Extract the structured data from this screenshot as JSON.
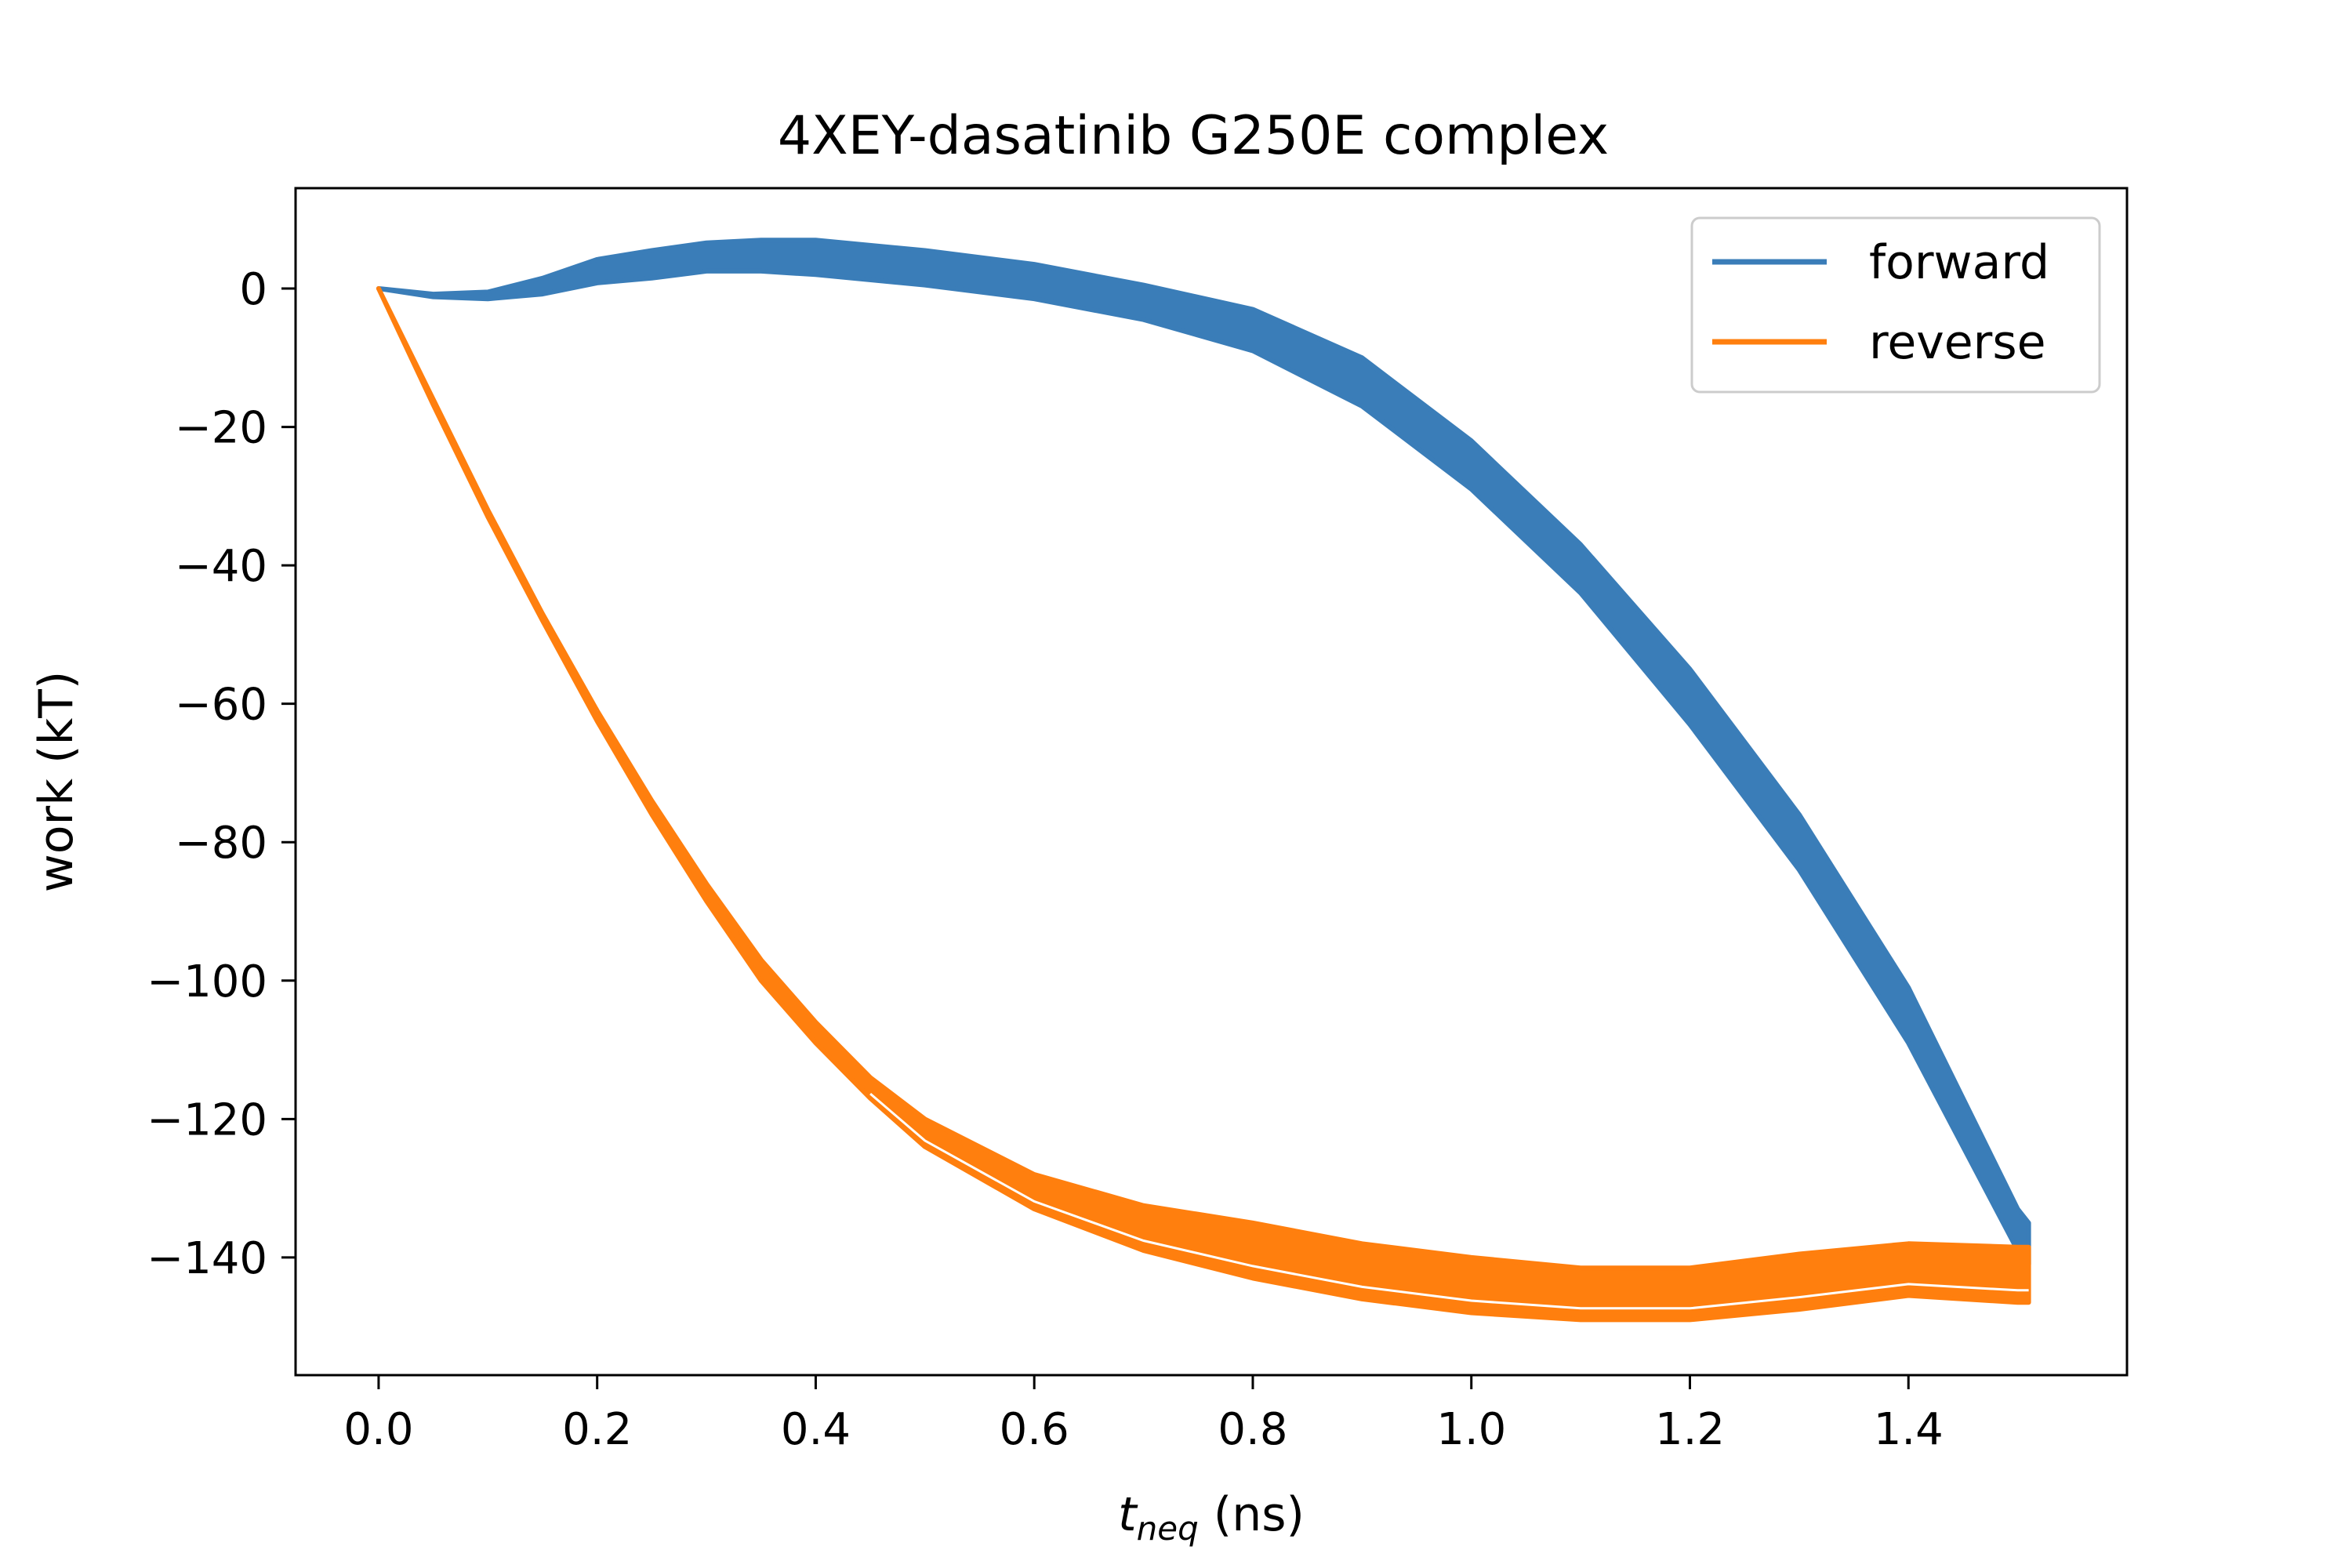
{
  "chart_data": {
    "type": "line",
    "title": "4XEY-dasatinib G250E complex",
    "xlabel": {
      "main": "t",
      "sub": "neq",
      "unit": " (ns)"
    },
    "ylabel": "work (kT)",
    "xlim": [
      -0.076,
      1.6
    ],
    "ylim": [
      -157,
      14.5
    ],
    "x_ticks": [
      {
        "value": 0.0,
        "label": "0.0"
      },
      {
        "value": 0.2,
        "label": "0.2"
      },
      {
        "value": 0.4,
        "label": "0.4"
      },
      {
        "value": 0.6,
        "label": "0.6"
      },
      {
        "value": 0.8,
        "label": "0.8"
      },
      {
        "value": 1.0,
        "label": "1.0"
      },
      {
        "value": 1.2,
        "label": "1.2"
      },
      {
        "value": 1.4,
        "label": "1.4"
      }
    ],
    "y_ticks": [
      {
        "value": 0,
        "label": "0"
      },
      {
        "value": -20,
        "label": "−20"
      },
      {
        "value": -40,
        "label": "−40"
      },
      {
        "value": -60,
        "label": "−60"
      },
      {
        "value": -80,
        "label": "−80"
      },
      {
        "value": -100,
        "label": "−100"
      },
      {
        "value": -120,
        "label": "−120"
      },
      {
        "value": -140,
        "label": "−140"
      }
    ],
    "grid": false,
    "legend": {
      "position": "top-right"
    },
    "series": [
      {
        "name": "forward",
        "color": "#3a7db8",
        "x": [
          0.0,
          0.05,
          0.1,
          0.15,
          0.2,
          0.25,
          0.3,
          0.35,
          0.4,
          0.5,
          0.6,
          0.7,
          0.8,
          0.9,
          1.0,
          1.1,
          1.2,
          1.3,
          1.4,
          1.5,
          1.51
        ],
        "upper": [
          0.0,
          -0.8,
          -0.5,
          1.5,
          4.2,
          5.5,
          6.6,
          7.0,
          7.0,
          5.5,
          3.5,
          0.5,
          -3.0,
          -10.0,
          -22.0,
          -37.0,
          -55.0,
          -76.0,
          -101.0,
          -133.0,
          -135.0
        ],
        "lower": [
          0.0,
          -1.2,
          -1.5,
          -0.8,
          0.8,
          1.5,
          2.5,
          2.5,
          2.0,
          0.5,
          -1.5,
          -4.5,
          -9.0,
          -17.0,
          -29.0,
          -44.0,
          -63.0,
          -84.0,
          -109.0,
          -139.0,
          -141.0
        ]
      },
      {
        "name": "reverse",
        "color": "#ff7f0e",
        "x": [
          0.0,
          0.05,
          0.1,
          0.15,
          0.2,
          0.25,
          0.3,
          0.35,
          0.4,
          0.45,
          0.5,
          0.6,
          0.7,
          0.8,
          0.9,
          1.0,
          1.1,
          1.2,
          1.3,
          1.4,
          1.5,
          1.51
        ],
        "upper": [
          0.0,
          -16.0,
          -32.0,
          -47.0,
          -61.0,
          -74.0,
          -86.0,
          -97.0,
          -106.0,
          -114.0,
          -120.0,
          -128.0,
          -132.5,
          -135.0,
          -138.0,
          -140.0,
          -141.5,
          -141.5,
          -139.5,
          -138.0,
          -138.5,
          -138.5
        ],
        "lower": [
          0.0,
          -16.8,
          -33.0,
          -48.0,
          -62.5,
          -76.0,
          -88.5,
          -100.0,
          -109.0,
          -117.0,
          -124.0,
          -133.0,
          -139.0,
          -143.0,
          -146.0,
          -148.0,
          -149.0,
          -149.0,
          -147.5,
          -145.5,
          -146.5,
          -146.5
        ]
      }
    ]
  }
}
